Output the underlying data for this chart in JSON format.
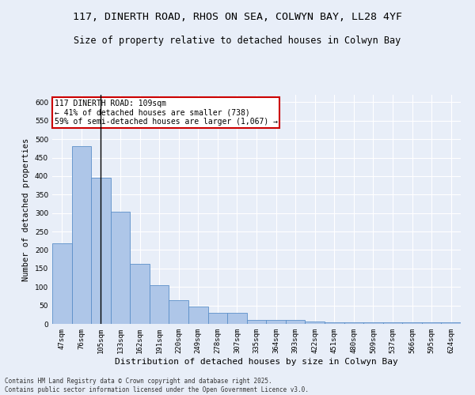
{
  "title": "117, DINERTH ROAD, RHOS ON SEA, COLWYN BAY, LL28 4YF",
  "subtitle": "Size of property relative to detached houses in Colwyn Bay",
  "xlabel": "Distribution of detached houses by size in Colwyn Bay",
  "ylabel": "Number of detached properties",
  "categories": [
    "47sqm",
    "76sqm",
    "105sqm",
    "133sqm",
    "162sqm",
    "191sqm",
    "220sqm",
    "249sqm",
    "278sqm",
    "307sqm",
    "335sqm",
    "364sqm",
    "393sqm",
    "422sqm",
    "451sqm",
    "480sqm",
    "509sqm",
    "537sqm",
    "566sqm",
    "595sqm",
    "624sqm"
  ],
  "values": [
    218,
    480,
    395,
    303,
    163,
    105,
    65,
    48,
    31,
    31,
    10,
    10,
    10,
    7,
    5,
    5,
    5,
    5,
    5,
    5,
    5
  ],
  "bar_color": "#aec6e8",
  "bar_edge_color": "#5b8fc9",
  "vline_x_index": 2,
  "vline_color": "#000000",
  "annotation_text": "117 DINERTH ROAD: 109sqm\n← 41% of detached houses are smaller (738)\n59% of semi-detached houses are larger (1,067) →",
  "annotation_box_color": "#ffffff",
  "annotation_box_edge_color": "#cc0000",
  "annotation_fontsize": 7,
  "ylim": [
    0,
    620
  ],
  "yticks": [
    0,
    50,
    100,
    150,
    200,
    250,
    300,
    350,
    400,
    450,
    500,
    550,
    600
  ],
  "background_color": "#e8eef8",
  "grid_color": "#ffffff",
  "footnote": "Contains HM Land Registry data © Crown copyright and database right 2025.\nContains public sector information licensed under the Open Government Licence v3.0.",
  "title_fontsize": 9.5,
  "subtitle_fontsize": 8.5,
  "xlabel_fontsize": 8,
  "ylabel_fontsize": 7.5,
  "tick_fontsize": 6.5
}
